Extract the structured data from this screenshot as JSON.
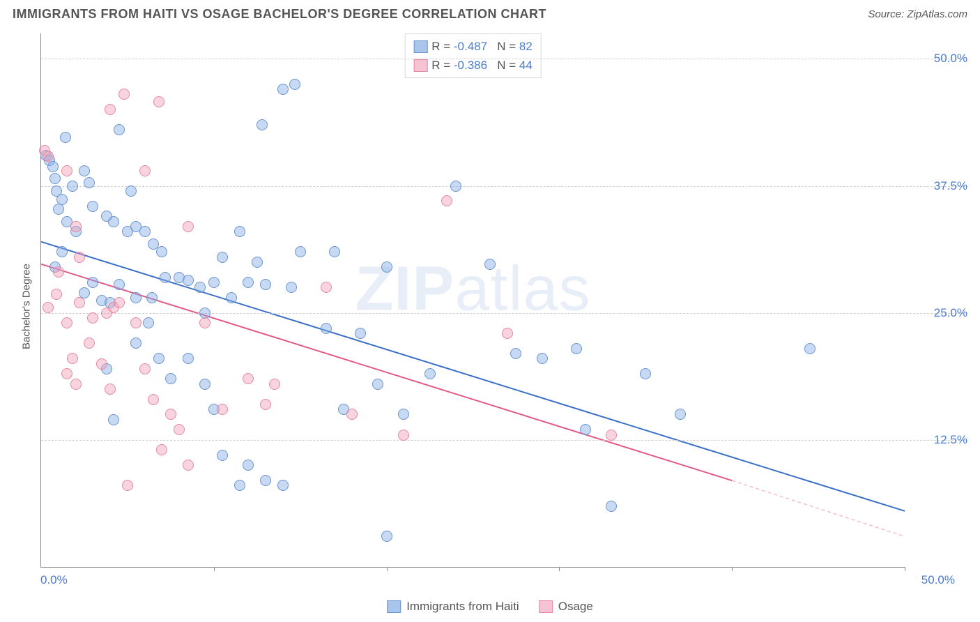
{
  "header": {
    "title": "IMMIGRANTS FROM HAITI VS OSAGE BACHELOR'S DEGREE CORRELATION CHART",
    "source_prefix": "Source: ",
    "source_name": "ZipAtlas.com"
  },
  "watermark": {
    "bold": "ZIP",
    "rest": "atlas"
  },
  "chart": {
    "type": "scatter",
    "background_color": "#ffffff",
    "grid_color": "#d0d0d0",
    "axis_color": "#888888",
    "tick_label_color": "#4a7bd0",
    "tick_fontsize": 17,
    "title_fontsize": 18,
    "title_color": "#555555",
    "ylabel": "Bachelor's Degree",
    "ylabel_fontsize": 15,
    "xlim": [
      0,
      50
    ],
    "ylim": [
      0,
      52.5
    ],
    "xticks": [
      0,
      10,
      20,
      30,
      40,
      50
    ],
    "xtick_labels": [
      "0.0%",
      "",
      "",
      "",
      "",
      "50.0%"
    ],
    "yticks": [
      12.5,
      25.0,
      37.5,
      50.0
    ],
    "ytick_labels": [
      "12.5%",
      "25.0%",
      "37.5%",
      "50.0%"
    ],
    "marker_radius": 8,
    "marker_border_width": 1.5,
    "series": [
      {
        "name": "Immigrants from Haiti",
        "fill_color": "rgba(133,171,228,0.45)",
        "border_color": "#6a95d0",
        "legend_fill": "#a9c5ec",
        "legend_border": "#6a95d0",
        "stats": {
          "R": "-0.487",
          "N": "82"
        },
        "trend": {
          "solid_color": "#3a6fc7",
          "dash_color": "#3a6fc7",
          "width": 2,
          "start": [
            0,
            32.0
          ],
          "solid_end": [
            50,
            5.5
          ],
          "dash_end": [
            50,
            5.5
          ]
        },
        "points": [
          [
            0.3,
            40.5
          ],
          [
            0.5,
            40.0
          ],
          [
            0.7,
            39.4
          ],
          [
            0.8,
            38.2
          ],
          [
            0.9,
            37.0
          ],
          [
            1.2,
            36.2
          ],
          [
            1.8,
            37.5
          ],
          [
            1.4,
            42.3
          ],
          [
            2.5,
            39.0
          ],
          [
            4.5,
            43.0
          ],
          [
            1.0,
            35.2
          ],
          [
            1.5,
            34.0
          ],
          [
            2.0,
            33.0
          ],
          [
            1.2,
            31.0
          ],
          [
            0.8,
            29.5
          ],
          [
            2.8,
            37.8
          ],
          [
            3.0,
            35.5
          ],
          [
            5.2,
            37.0
          ],
          [
            3.8,
            34.5
          ],
          [
            4.2,
            34.0
          ],
          [
            5.0,
            33.0
          ],
          [
            5.5,
            33.5
          ],
          [
            6.0,
            33.0
          ],
          [
            6.5,
            31.8
          ],
          [
            7.0,
            31.0
          ],
          [
            7.2,
            28.5
          ],
          [
            2.5,
            27.0
          ],
          [
            3.0,
            28.0
          ],
          [
            3.5,
            26.2
          ],
          [
            4.0,
            26.0
          ],
          [
            4.5,
            27.8
          ],
          [
            5.5,
            26.5
          ],
          [
            6.4,
            26.5
          ],
          [
            6.2,
            24.0
          ],
          [
            8.0,
            28.5
          ],
          [
            8.5,
            28.2
          ],
          [
            9.2,
            27.5
          ],
          [
            10.0,
            28.0
          ],
          [
            10.5,
            30.5
          ],
          [
            11.5,
            33.0
          ],
          [
            12.5,
            30.0
          ],
          [
            12.0,
            28.0
          ],
          [
            14.0,
            47.0
          ],
          [
            14.7,
            47.5
          ],
          [
            12.8,
            43.5
          ],
          [
            9.5,
            25.0
          ],
          [
            11.0,
            26.5
          ],
          [
            13.0,
            27.8
          ],
          [
            15.0,
            31.0
          ],
          [
            14.5,
            27.5
          ],
          [
            17.0,
            31.0
          ],
          [
            20.0,
            29.5
          ],
          [
            16.5,
            23.5
          ],
          [
            18.5,
            23.0
          ],
          [
            19.5,
            18.0
          ],
          [
            17.5,
            15.5
          ],
          [
            21.0,
            15.0
          ],
          [
            22.5,
            19.0
          ],
          [
            8.5,
            20.5
          ],
          [
            9.5,
            18.0
          ],
          [
            10.0,
            15.5
          ],
          [
            10.5,
            11.0
          ],
          [
            12.0,
            10.0
          ],
          [
            13.0,
            8.5
          ],
          [
            14.0,
            8.0
          ],
          [
            11.5,
            8.0
          ],
          [
            5.5,
            22.0
          ],
          [
            6.8,
            20.5
          ],
          [
            7.5,
            18.5
          ],
          [
            3.8,
            19.5
          ],
          [
            4.2,
            14.5
          ],
          [
            24.0,
            37.5
          ],
          [
            26.0,
            29.8
          ],
          [
            27.5,
            21.0
          ],
          [
            29.0,
            20.5
          ],
          [
            31.0,
            21.5
          ],
          [
            31.5,
            13.5
          ],
          [
            33.0,
            6.0
          ],
          [
            35.0,
            19.0
          ],
          [
            37.0,
            15.0
          ],
          [
            20.0,
            3.0
          ],
          [
            44.5,
            21.5
          ]
        ]
      },
      {
        "name": "Osage",
        "fill_color": "rgba(239,160,185,0.45)",
        "border_color": "#e688a4",
        "legend_fill": "#f6c3d2",
        "legend_border": "#e688a4",
        "stats": {
          "R": "-0.386",
          "N": "44"
        },
        "trend": {
          "solid_color": "#e35a86",
          "dash_color": "#f3bccb",
          "width": 2,
          "start": [
            0,
            29.8
          ],
          "solid_end": [
            40,
            8.5
          ],
          "dash_end": [
            50,
            3.0
          ]
        },
        "points": [
          [
            0.2,
            41.0
          ],
          [
            0.4,
            40.4
          ],
          [
            1.5,
            39.0
          ],
          [
            2.0,
            33.5
          ],
          [
            2.2,
            30.5
          ],
          [
            1.0,
            29.0
          ],
          [
            0.9,
            26.8
          ],
          [
            0.4,
            25.5
          ],
          [
            4.8,
            46.5
          ],
          [
            4.0,
            45.0
          ],
          [
            6.8,
            45.8
          ],
          [
            6.0,
            39.0
          ],
          [
            8.5,
            33.5
          ],
          [
            1.5,
            24.0
          ],
          [
            2.2,
            26.0
          ],
          [
            3.0,
            24.5
          ],
          [
            3.8,
            25.0
          ],
          [
            4.2,
            25.5
          ],
          [
            4.5,
            26.0
          ],
          [
            5.5,
            24.0
          ],
          [
            1.8,
            20.5
          ],
          [
            1.5,
            19.0
          ],
          [
            2.0,
            18.0
          ],
          [
            2.8,
            22.0
          ],
          [
            3.5,
            20.0
          ],
          [
            4.0,
            17.5
          ],
          [
            6.0,
            19.5
          ],
          [
            6.5,
            16.5
          ],
          [
            7.5,
            15.0
          ],
          [
            8.0,
            13.5
          ],
          [
            7.0,
            11.5
          ],
          [
            8.5,
            10.0
          ],
          [
            5.0,
            8.0
          ],
          [
            9.5,
            24.0
          ],
          [
            10.5,
            15.5
          ],
          [
            12.0,
            18.5
          ],
          [
            13.0,
            16.0
          ],
          [
            13.5,
            18.0
          ],
          [
            16.5,
            27.5
          ],
          [
            18.0,
            15.0
          ],
          [
            21.0,
            13.0
          ],
          [
            23.5,
            36.0
          ],
          [
            27.0,
            23.0
          ],
          [
            33.0,
            13.0
          ]
        ]
      }
    ],
    "stats_legend_labels": {
      "R": "R = ",
      "N": "N = "
    },
    "bottom_legend_labels": [
      "Immigrants from Haiti",
      "Osage"
    ]
  }
}
